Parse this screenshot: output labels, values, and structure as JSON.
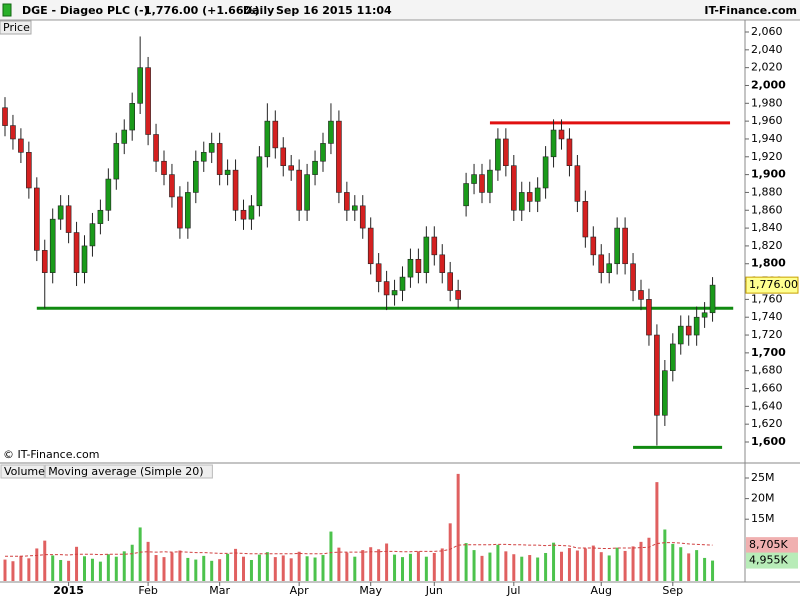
{
  "header": {
    "symbol": "DGE - Diageo PLC (-)",
    "quote": "1,776.00 (+1.66%)",
    "period": "Daily",
    "timestamp": "Sep 16 2015 11:04",
    "source": "IT-Finance.com"
  },
  "chart_data": [
    {
      "type": "candlestick",
      "panel_label": "Price",
      "watermark": "© IT-Finance.com",
      "up_color": "#1a9a1a",
      "down_color": "#d42020",
      "open": [
        1975,
        1955,
        1940,
        1925,
        1885,
        1815,
        1790,
        1850,
        1865,
        1835,
        1790,
        1820,
        1845,
        1860,
        1895,
        1935,
        1950,
        1980,
        2020,
        1945,
        1915,
        1900,
        1875,
        1840,
        1880,
        1915,
        1925,
        1935,
        1900,
        1905,
        1860,
        1850,
        1865,
        1920,
        1960,
        1930,
        1910,
        1905,
        1860,
        1900,
        1915,
        1935,
        1960,
        1880,
        1860,
        1865,
        1840,
        1800,
        1780,
        1765,
        1770,
        1785,
        1805,
        1790,
        1830,
        1810,
        1790,
        1770,
        1865,
        1890,
        1900,
        1880,
        1905,
        1940,
        1910,
        1860,
        1880,
        1870,
        1885,
        1920,
        1950,
        1940,
        1910,
        1870,
        1830,
        1810,
        1790,
        1800,
        1840,
        1800,
        1770,
        1760,
        1720,
        1630,
        1680,
        1710,
        1730,
        1720,
        1740,
        1745
      ],
      "high": [
        1987,
        1967,
        1952,
        1937,
        1897,
        1827,
        1862,
        1877,
        1877,
        1847,
        1832,
        1857,
        1872,
        1907,
        1947,
        1962,
        1992,
        2055,
        2032,
        1957,
        1927,
        1912,
        1887,
        1892,
        1927,
        1937,
        1947,
        1947,
        1917,
        1917,
        1872,
        1877,
        1932,
        1980,
        1972,
        1942,
        1922,
        1917,
        1912,
        1927,
        1947,
        1980,
        1972,
        1892,
        1877,
        1877,
        1852,
        1812,
        1792,
        1782,
        1797,
        1817,
        1817,
        1842,
        1842,
        1822,
        1802,
        1782,
        1902,
        1912,
        1912,
        1917,
        1952,
        1952,
        1922,
        1892,
        1892,
        1897,
        1932,
        1962,
        1962,
        1952,
        1922,
        1882,
        1842,
        1822,
        1812,
        1852,
        1852,
        1812,
        1782,
        1772,
        1732,
        1692,
        1722,
        1742,
        1742,
        1752,
        1757,
        1785
      ],
      "low": [
        1943,
        1928,
        1913,
        1873,
        1803,
        1750,
        1778,
        1838,
        1823,
        1775,
        1778,
        1808,
        1833,
        1848,
        1883,
        1923,
        1938,
        1968,
        1933,
        1903,
        1888,
        1863,
        1828,
        1828,
        1868,
        1903,
        1913,
        1888,
        1888,
        1848,
        1838,
        1838,
        1853,
        1908,
        1918,
        1898,
        1893,
        1848,
        1848,
        1888,
        1903,
        1923,
        1868,
        1848,
        1848,
        1828,
        1788,
        1768,
        1748,
        1753,
        1758,
        1773,
        1778,
        1778,
        1798,
        1778,
        1758,
        1750,
        1853,
        1878,
        1868,
        1868,
        1893,
        1898,
        1848,
        1848,
        1858,
        1858,
        1873,
        1908,
        1928,
        1898,
        1858,
        1818,
        1798,
        1778,
        1778,
        1788,
        1788,
        1758,
        1748,
        1708,
        1596,
        1618,
        1668,
        1698,
        1708,
        1708,
        1728,
        1735
      ],
      "close": [
        1955,
        1940,
        1925,
        1885,
        1815,
        1790,
        1850,
        1865,
        1835,
        1790,
        1820,
        1845,
        1860,
        1895,
        1935,
        1950,
        1980,
        2020,
        1945,
        1915,
        1900,
        1875,
        1840,
        1880,
        1915,
        1925,
        1935,
        1900,
        1905,
        1860,
        1850,
        1865,
        1920,
        1960,
        1930,
        1910,
        1905,
        1860,
        1900,
        1915,
        1935,
        1960,
        1880,
        1860,
        1865,
        1840,
        1800,
        1780,
        1765,
        1770,
        1785,
        1805,
        1790,
        1830,
        1810,
        1790,
        1770,
        1760,
        1890,
        1900,
        1880,
        1905,
        1940,
        1910,
        1860,
        1880,
        1870,
        1885,
        1920,
        1950,
        1940,
        1910,
        1870,
        1830,
        1810,
        1790,
        1800,
        1840,
        1800,
        1770,
        1760,
        1720,
        1630,
        1680,
        1710,
        1730,
        1720,
        1740,
        1745,
        1776
      ],
      "ylim": [
        1600,
        2060
      ],
      "yticks": [
        {
          "value": 1600,
          "label": "1,600"
        },
        {
          "value": 1620,
          "label": "1,620"
        },
        {
          "value": 1640,
          "label": "1,640"
        },
        {
          "value": 1660,
          "label": "1,660"
        },
        {
          "value": 1680,
          "label": "1,680"
        },
        {
          "value": 1700,
          "label": "1,700"
        },
        {
          "value": 1720,
          "label": "1,720"
        },
        {
          "value": 1740,
          "label": "1,740"
        },
        {
          "value": 1760,
          "label": "1,760"
        },
        {
          "value": 1780,
          "label": "1,780"
        },
        {
          "value": 1800,
          "label": "1,800"
        },
        {
          "value": 1820,
          "label": "1,820"
        },
        {
          "value": 1840,
          "label": "1,840"
        },
        {
          "value": 1860,
          "label": "1,860"
        },
        {
          "value": 1880,
          "label": "1,880"
        },
        {
          "value": 1900,
          "label": "1,900"
        },
        {
          "value": 1920,
          "label": "1,920"
        },
        {
          "value": 1940,
          "label": "1,940"
        },
        {
          "value": 1960,
          "label": "1,960"
        },
        {
          "value": 1980,
          "label": "1,980"
        },
        {
          "value": 2000,
          "label": "2,000"
        },
        {
          "value": 2020,
          "label": "2,020"
        },
        {
          "value": 2040,
          "label": "2,040"
        },
        {
          "value": 2060,
          "label": "2,060"
        }
      ],
      "bold_every": 100,
      "last_price": {
        "value": 1776,
        "label": "1,776.00"
      },
      "levels": [
        {
          "value": 1958,
          "color": "#e01010",
          "start": 61,
          "end": 91.2
        },
        {
          "value": 1750,
          "color": "#108a10",
          "start": 4,
          "end": 91.6
        },
        {
          "value": 1594,
          "color": "#108a10",
          "start": 79,
          "end": 90.2
        }
      ]
    },
    {
      "type": "volume",
      "legend": [
        "Volume",
        "Moving average (Simple 20)"
      ],
      "categories": [
        null,
        null,
        null,
        null,
        null,
        null,
        null,
        null,
        "2015",
        null,
        null,
        null,
        null,
        null,
        null,
        null,
        null,
        null,
        "Feb",
        null,
        null,
        null,
        null,
        null,
        null,
        null,
        null,
        "Mar",
        null,
        null,
        null,
        null,
        null,
        null,
        null,
        null,
        null,
        "Apr",
        null,
        null,
        null,
        null,
        null,
        null,
        null,
        null,
        "May",
        null,
        null,
        null,
        null,
        null,
        null,
        null,
        "Jun",
        null,
        null,
        null,
        null,
        null,
        null,
        null,
        null,
        null,
        "Jul",
        null,
        null,
        null,
        null,
        null,
        null,
        null,
        null,
        null,
        null,
        "Aug",
        null,
        null,
        null,
        null,
        null,
        null,
        null,
        null,
        "Sep",
        null,
        null,
        null,
        null,
        null
      ],
      "bold_category": "2015",
      "series": [
        {
          "name": "Volume",
          "color_up": "#4cc24c",
          "color_down": "#e06060",
          "values": [
            5200000,
            4800000,
            6100000,
            5500000,
            7900000,
            9800000,
            6200000,
            5100000,
            4900000,
            8300000,
            6000000,
            5400000,
            4700000,
            6500000,
            5900000,
            7200000,
            8800000,
            13000000,
            9500000,
            6300000,
            5800000,
            6900000,
            7400000,
            5600000,
            5200000,
            6100000,
            4900000,
            5300000,
            6600000,
            7800000,
            5900000,
            5100000,
            6400000,
            7000000,
            5800000,
            6200000,
            5500000,
            7100000,
            6000000,
            5700000,
            6300000,
            12000000,
            8100000,
            6900000,
            5900000,
            7500000,
            8200000,
            7700000,
            9100000,
            6400000,
            5800000,
            6600000,
            7200000,
            5900000,
            6800000,
            7900000,
            14000000,
            26000000,
            9200000,
            7500000,
            6100000,
            6900000,
            8800000,
            7200000,
            6500000,
            5900000,
            6300000,
            5700000,
            6800000,
            9300000,
            7100000,
            8000000,
            7400000,
            7900000,
            8600000,
            7000000,
            6200000,
            8100000,
            7300000,
            8400000,
            9500000,
            10500000,
            24000000,
            12500000,
            9000000,
            8200000,
            6700000,
            7500000,
            5600000,
            4955000
          ]
        },
        {
          "name": "Moving average (Simple 20)",
          "color": "#d04040",
          "values": [
            6000000,
            6000000,
            6000000,
            6100000,
            6200000,
            6400000,
            6400000,
            6400000,
            6300000,
            6500000,
            6500000,
            6500000,
            6400000,
            6500000,
            6500000,
            6500000,
            6600000,
            7000000,
            7100000,
            7000000,
            7100000,
            7000000,
            7100000,
            7000000,
            6900000,
            6900000,
            6800000,
            6700000,
            6700000,
            6800000,
            6700000,
            6600000,
            6600000,
            6600000,
            6600000,
            6600000,
            6600000,
            6700000,
            6600000,
            6600000,
            6600000,
            6900000,
            7000000,
            7000000,
            7000000,
            7000000,
            7100000,
            7100000,
            7200000,
            7200000,
            7100000,
            7100000,
            7200000,
            7200000,
            7200000,
            7300000,
            7700000,
            8700000,
            8800000,
            8800000,
            8800000,
            8800000,
            8900000,
            8900000,
            8800000,
            8800000,
            8700000,
            8700000,
            8600000,
            8700000,
            8600000,
            8500000,
            8000000,
            8000000,
            8000000,
            7900000,
            7900000,
            8000000,
            8000000,
            8000000,
            8100000,
            8200000,
            9100000,
            9300000,
            9300000,
            9200000,
            9000000,
            8900000,
            8800000,
            8705000
          ]
        }
      ],
      "tags": [
        {
          "value": 8705000,
          "label": "8,705K",
          "color": "#f0b0b0",
          "text_color": "#c02020"
        },
        {
          "value": 4955000,
          "label": "4,955K",
          "color": "#b8ecb8",
          "text_color": "#108a10"
        }
      ],
      "ylim": [
        0,
        28400000
      ],
      "yticks": [
        {
          "value": 15000000,
          "label": "15M"
        },
        {
          "value": 20000000,
          "label": "20M"
        },
        {
          "value": 25000000,
          "label": "25M"
        }
      ]
    }
  ]
}
